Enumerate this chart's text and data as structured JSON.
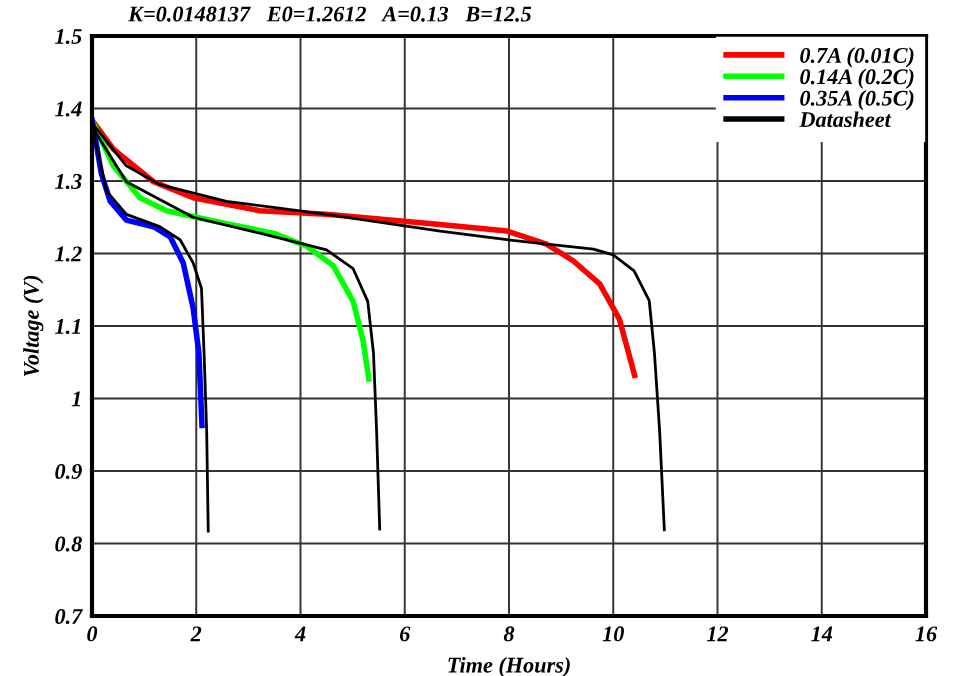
{
  "chart_data": {
    "type": "line",
    "xlabel": "Time (Hours)",
    "ylabel": "Voltage (V)",
    "annotations": [
      "K=0.0148137   E0=1.2612   A=0.13   B=12.5"
    ],
    "xlim": [
      0,
      16
    ],
    "xticks": [
      0,
      2,
      4,
      6,
      8,
      10,
      12,
      14,
      16
    ],
    "ylim": [
      0.7,
      1.5
    ],
    "yticks": [
      0.7,
      0.8,
      0.9,
      1,
      1.1,
      1.2,
      1.3,
      1.4,
      1.5
    ],
    "grid": true,
    "legend": "top right",
    "marker": "none",
    "line_style": "solid",
    "series": [
      {
        "name": "0.7A (0.01C)",
        "color": "#ff0000",
        "x": [
          0,
          0.41,
          1.18,
          1.94,
          3.22,
          4.5,
          6.68,
          7.96,
          8.72,
          9.23,
          9.74,
          10.12,
          10.41
        ],
        "values": [
          1.384,
          1.344,
          1.299,
          1.277,
          1.259,
          1.254,
          1.24,
          1.231,
          1.213,
          1.19,
          1.158,
          1.109,
          1.032
        ]
      },
      {
        "name": "0.14A (0.2C)",
        "color": "#00ff00",
        "x": [
          0,
          0.41,
          0.92,
          1.43,
          2.58,
          3.48,
          4.12,
          4.63,
          5.01,
          5.2,
          5.31
        ],
        "values": [
          1.384,
          1.321,
          1.277,
          1.259,
          1.241,
          1.228,
          1.21,
          1.183,
          1.134,
          1.08,
          1.027
        ]
      },
      {
        "name": "0.35A (0.5C)",
        "color": "#0000ff",
        "x": [
          0,
          0.09,
          0.18,
          0.35,
          0.66,
          1.18,
          1.5,
          1.75,
          1.94,
          2.05,
          2.11
        ],
        "values": [
          1.384,
          1.348,
          1.31,
          1.272,
          1.246,
          1.237,
          1.223,
          1.187,
          1.125,
          1.063,
          0.963
        ]
      },
      {
        "name": "Datasheet",
        "color": "#000000",
        "x": [
          0,
          0.66,
          1.3,
          2.58,
          4.5,
          6.68,
          7.96,
          9.62,
          10.0,
          10.4,
          10.69,
          10.79,
          10.89,
          10.98
        ],
        "values": [
          1.38,
          1.321,
          1.295,
          1.272,
          1.254,
          1.231,
          1.219,
          1.206,
          1.198,
          1.176,
          1.135,
          1.063,
          0.955,
          0.819
        ]
      },
      {
        "color": "#000000",
        "x": [
          0,
          0.66,
          1.94,
          3.22,
          4.5,
          5.01,
          5.29,
          5.4,
          5.46,
          5.52
        ],
        "values": [
          1.375,
          1.299,
          1.25,
          1.228,
          1.205,
          1.179,
          1.134,
          1.063,
          0.955,
          0.82
        ]
      },
      {
        "color": "#000000",
        "x": [
          0,
          0.28,
          0.66,
          1.3,
          1.69,
          1.94,
          2.1,
          2.15,
          2.2,
          2.23
        ],
        "values": [
          1.375,
          1.286,
          1.254,
          1.237,
          1.219,
          1.187,
          1.152,
          1.063,
          0.955,
          0.817
        ]
      }
    ]
  }
}
